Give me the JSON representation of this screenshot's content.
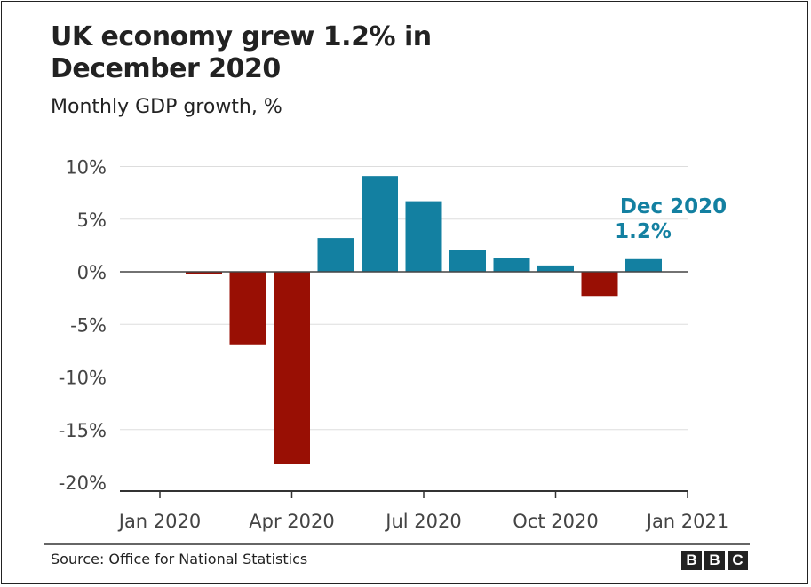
{
  "chart_data": {
    "type": "bar",
    "title": "UK economy grew 1.2% in December 2020",
    "subtitle": "Monthly GDP growth, %",
    "categories": [
      "Jan 2020",
      "Feb 2020",
      "Mar 2020",
      "Apr 2020",
      "May 2020",
      "Jun 2020",
      "Jul 2020",
      "Aug 2020",
      "Sep 2020",
      "Oct 2020",
      "Nov 2020",
      "Dec 2020"
    ],
    "values": [
      0.0,
      -0.2,
      -6.9,
      -18.3,
      3.2,
      9.1,
      6.7,
      2.1,
      1.3,
      0.6,
      -2.3,
      1.2
    ],
    "ylim": [
      -20,
      10
    ],
    "yticks": [
      "10%",
      "5%",
      "0%",
      "-5%",
      "-10%",
      "-15%",
      "-20%"
    ],
    "ytick_values": [
      10,
      5,
      0,
      -5,
      -10,
      -15,
      -20
    ],
    "xticks": [
      "Jan 2020",
      "Apr 2020",
      "Jul 2020",
      "Oct 2020",
      "Jan 2021"
    ],
    "grid": true,
    "colors": {
      "positive": "#1380A1",
      "negative": "#990F04"
    },
    "annotation": {
      "line1": "Dec 2020",
      "line2": "1.2%"
    }
  },
  "footer": {
    "source": "Source: Office for National Statistics",
    "logo": "BBC"
  }
}
